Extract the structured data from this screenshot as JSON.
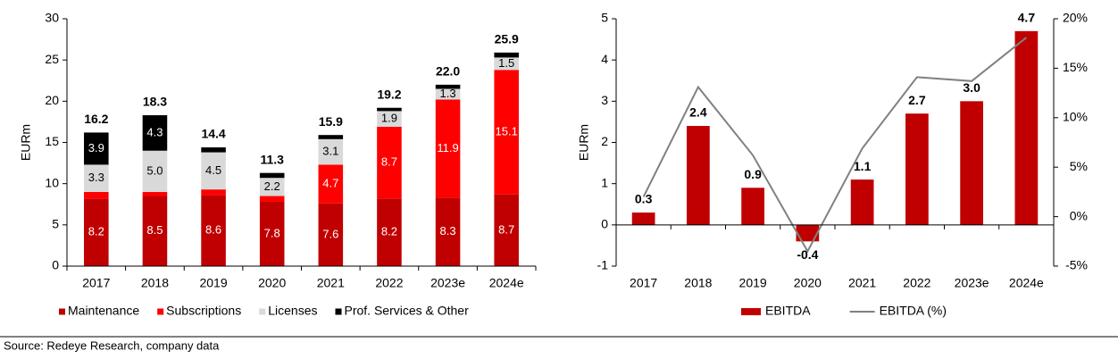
{
  "chart_data": [
    {
      "type": "stacked_bar",
      "ylabel": "EURm",
      "categories": [
        "2017",
        "2018",
        "2019",
        "2020",
        "2021",
        "2022",
        "2023e",
        "2024e"
      ],
      "series": [
        {
          "name": "Maintenance",
          "color": "#c00000",
          "values": [
            8.2,
            8.5,
            8.6,
            7.8,
            7.6,
            8.2,
            8.3,
            8.7
          ]
        },
        {
          "name": "Subscriptions",
          "color": "#ff0000",
          "values": [
            0.8,
            0.5,
            0.7,
            0.7,
            4.7,
            8.7,
            11.9,
            15.1
          ]
        },
        {
          "name": "Licenses",
          "color": "#d9d9d9",
          "values": [
            3.3,
            5,
            4.5,
            2.2,
            3.1,
            1.9,
            1.3,
            1.5
          ],
          "value_labels": [
            "3.3",
            "5.0",
            "4.5",
            "2.2",
            "3.1",
            "1.9",
            "1.3",
            "1.5"
          ]
        },
        {
          "name": "Prof. Services & Other",
          "color": "#000000",
          "values": [
            3.9,
            4.3,
            0.6,
            0.6,
            0.5,
            0.4,
            0.5,
            0.6
          ]
        }
      ],
      "totals": [
        16.2,
        18.3,
        14.4,
        11.3,
        15.9,
        19.2,
        22,
        25.9
      ],
      "total_labels": [
        "16.2",
        "18.3",
        "14.4",
        "11.3",
        "15.9",
        "19.2",
        "22.0",
        "25.9"
      ],
      "ylim": [
        0,
        30
      ],
      "yticks": [
        0,
        5,
        10,
        15,
        20,
        25,
        30
      ]
    },
    {
      "type": "combo",
      "ylabel": "EURm",
      "categories": [
        "2017",
        "2018",
        "2019",
        "2020",
        "2021",
        "2022",
        "2023e",
        "2024e"
      ],
      "series": [
        {
          "name": "EBITDA",
          "type": "bar",
          "color": "#c00000",
          "values": [
            0.3,
            2.4,
            0.9,
            -0.4,
            1.1,
            2.7,
            3,
            4.7
          ],
          "value_labels": [
            "0.3",
            "2.4",
            "0.9",
            "-0.4",
            "1.1",
            "2.7",
            "3.0",
            "4.7"
          ]
        },
        {
          "name": "EBITDA (%)",
          "type": "line",
          "axis": "y2",
          "color": "#808080",
          "values": [
            2,
            13.1,
            6.2,
            -3.5,
            6.9,
            14.1,
            13.7,
            18.1
          ]
        }
      ],
      "ylim": [
        -1,
        5
      ],
      "yticks": [
        -1,
        0,
        1,
        2,
        3,
        4,
        5
      ],
      "y2lim": [
        -5,
        20
      ],
      "y2ticks": [
        {
          "value": -5,
          "label": "-5%"
        },
        {
          "value": 0,
          "label": "0%"
        },
        {
          "value": 5,
          "label": "5%"
        },
        {
          "value": 10,
          "label": "10%"
        },
        {
          "value": 15,
          "label": "15%"
        },
        {
          "value": 20,
          "label": "20%"
        }
      ]
    }
  ],
  "source": "Source: Redeye Research, company data"
}
